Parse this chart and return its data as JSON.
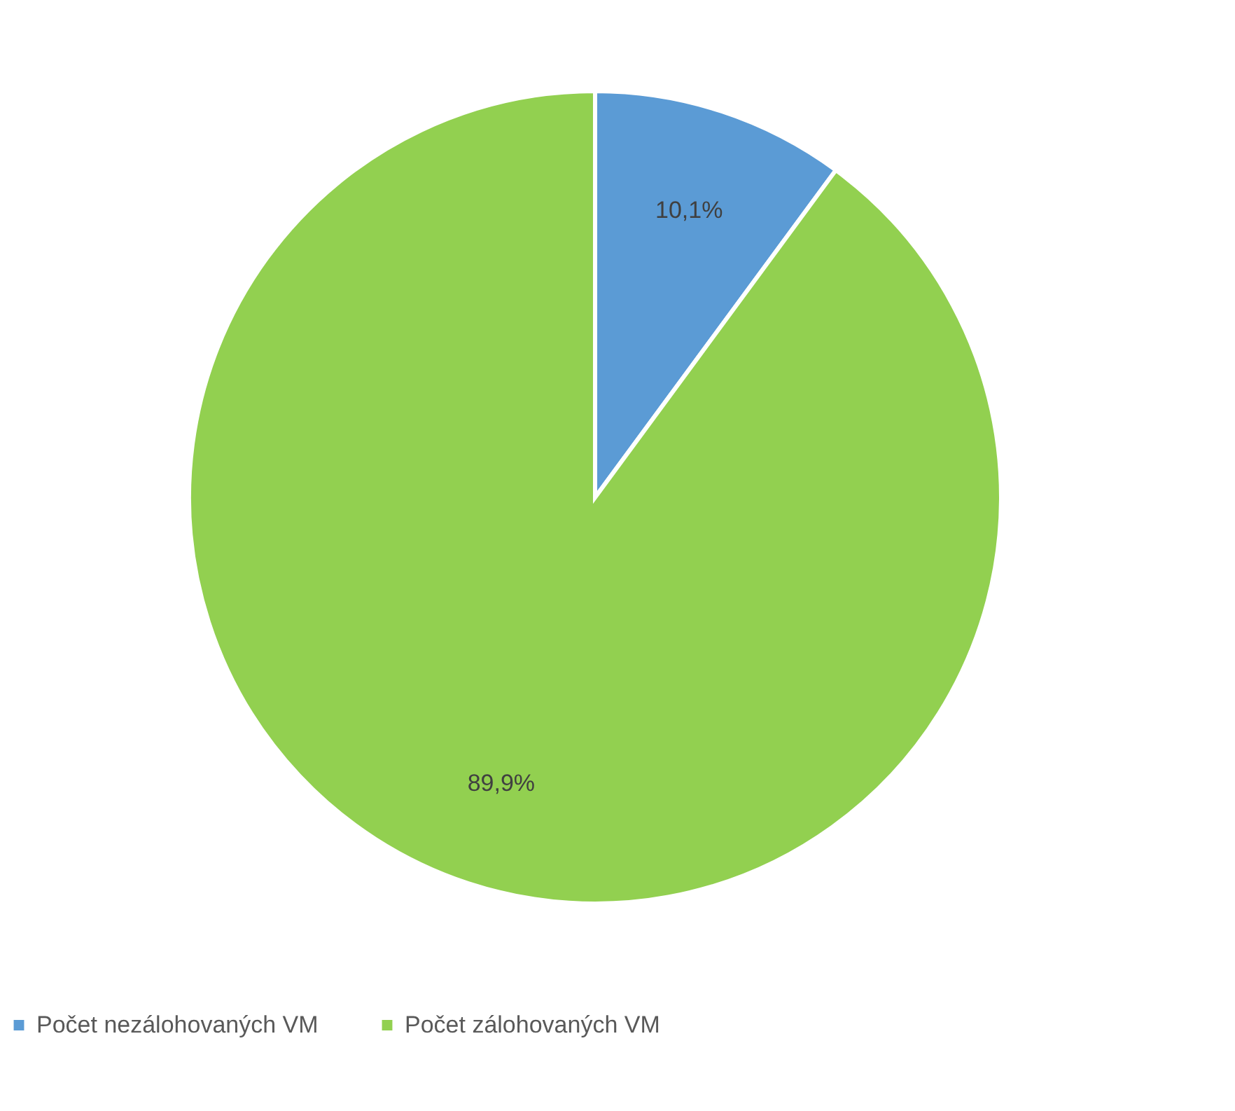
{
  "chart_data": {
    "type": "pie",
    "categories": [
      "Počet nezálohovaných VM",
      "Počet zálohovaných VM"
    ],
    "values": [
      10.1,
      89.9
    ],
    "colors": [
      "#5b9bd5",
      "#92d050"
    ],
    "value_labels": [
      "10,1%",
      "89,9%"
    ],
    "legend": "bottom"
  }
}
